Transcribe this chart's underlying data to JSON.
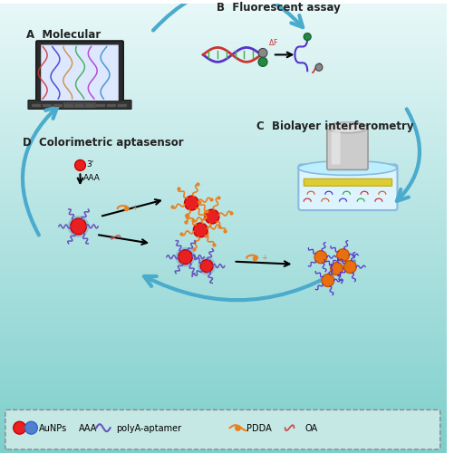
{
  "background_gradient_top": "#e8f8f8",
  "background_gradient_bottom": "#7ecfcc",
  "labels": {
    "A": "A  Molecular",
    "B": "B  Fluorescent assay",
    "C": "C  Biolayer interferometry",
    "D": "D  Colorimetric aptasensor"
  },
  "arrow_color": "#4aabcc",
  "text_color": "#222222",
  "aunp_red": "#e82020",
  "aunp_blue": "#5080d0",
  "strand_purple": "#6655bb",
  "strand_orange": "#e88020",
  "strand_red": "#cc4444"
}
